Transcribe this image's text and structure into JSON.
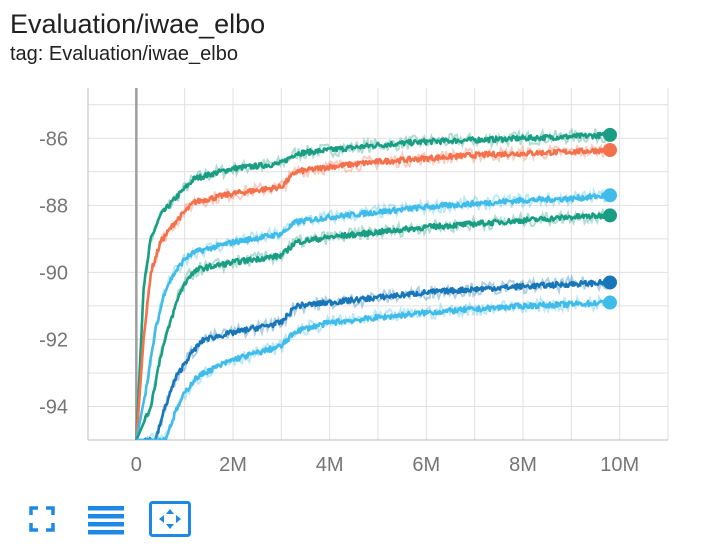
{
  "card": {
    "title": "Evaluation/iwae_elbo",
    "tag": "tag: Evaluation/iwae_elbo"
  },
  "toolbar": {
    "buttons": [
      {
        "icon": "fullscreen-icon"
      },
      {
        "icon": "data-table-icon"
      },
      {
        "icon": "fit-domain-icon"
      }
    ]
  },
  "colors": {
    "accent": "#1e88e5",
    "axis_zero": "#9e9e9e",
    "grid": "#e0e0e0",
    "tick_text": "#757575"
  },
  "chart_data": {
    "type": "line",
    "title": "",
    "xlabel": "",
    "ylabel": "",
    "xlim": [
      -1000000,
      11000000
    ],
    "ylim": [
      -95,
      -84.5
    ],
    "x_ticks": [
      0,
      2000000,
      4000000,
      6000000,
      8000000,
      10000000
    ],
    "x_tick_labels": [
      "0",
      "2M",
      "4M",
      "6M",
      "8M",
      "10M"
    ],
    "y_ticks": [
      -94,
      -92,
      -90,
      -88,
      -86
    ],
    "y_tick_labels": [
      "-94",
      "-92",
      "-90",
      "-88",
      "-86"
    ],
    "grid": true,
    "smoothing": "smoothed series drawn over a faint raw series",
    "series": [
      {
        "color": "#1a9e83",
        "x": [
          0,
          150000,
          300000,
          500000,
          800000,
          1000000,
          1200000,
          2000000,
          3000000,
          3300000,
          4000000,
          5000000,
          6000000,
          7000000,
          8000000,
          9000000,
          9800000
        ],
        "y": [
          -95,
          -90.5,
          -89.0,
          -88.3,
          -87.8,
          -87.5,
          -87.2,
          -86.9,
          -86.75,
          -86.45,
          -86.35,
          -86.2,
          -86.1,
          -86.05,
          -86.0,
          -85.95,
          -85.9
        ]
      },
      {
        "color": "#f4714b",
        "x": [
          0,
          150000,
          300000,
          500000,
          800000,
          1000000,
          1200000,
          2000000,
          3000000,
          3300000,
          4000000,
          5000000,
          6000000,
          7000000,
          8000000,
          9000000,
          9800000
        ],
        "y": [
          -95,
          -92.0,
          -90.0,
          -89.1,
          -88.5,
          -88.2,
          -87.9,
          -87.65,
          -87.45,
          -87.0,
          -86.85,
          -86.7,
          -86.6,
          -86.5,
          -86.45,
          -86.4,
          -86.35
        ]
      },
      {
        "color": "#3fbce9",
        "x": [
          0,
          200000,
          400000,
          600000,
          800000,
          1000000,
          1200000,
          2000000,
          3000000,
          3300000,
          4000000,
          5000000,
          6000000,
          7000000,
          8000000,
          9000000,
          9800000
        ],
        "y": [
          -95,
          -93.5,
          -91.7,
          -90.5,
          -90.0,
          -89.6,
          -89.4,
          -89.1,
          -88.85,
          -88.5,
          -88.35,
          -88.2,
          -88.05,
          -87.95,
          -87.85,
          -87.8,
          -87.7
        ]
      },
      {
        "color": "#1a9e83",
        "x": [
          0,
          300000,
          500000,
          700000,
          900000,
          1100000,
          1300000,
          2000000,
          3000000,
          3300000,
          4000000,
          5000000,
          6000000,
          7000000,
          8000000,
          9000000,
          9800000
        ],
        "y": [
          -95,
          -94.0,
          -92.5,
          -91.5,
          -90.6,
          -90.1,
          -89.9,
          -89.7,
          -89.5,
          -89.1,
          -88.95,
          -88.8,
          -88.65,
          -88.55,
          -88.45,
          -88.35,
          -88.3
        ]
      },
      {
        "color": "#1776b8",
        "x": [
          0,
          400000,
          600000,
          800000,
          1000000,
          1200000,
          1400000,
          2000000,
          3000000,
          3300000,
          4000000,
          5000000,
          6000000,
          7000000,
          8000000,
          9000000,
          9800000
        ],
        "y": [
          -95,
          -95.0,
          -94.0,
          -93.2,
          -92.7,
          -92.3,
          -92.0,
          -91.8,
          -91.5,
          -91.0,
          -90.9,
          -90.75,
          -90.6,
          -90.5,
          -90.42,
          -90.35,
          -90.3
        ]
      },
      {
        "color": "#3fbce9",
        "x": [
          0,
          600000,
          800000,
          1000000,
          1200000,
          1400000,
          2000000,
          3000000,
          3300000,
          4000000,
          5000000,
          6000000,
          7000000,
          8000000,
          9000000,
          9800000
        ],
        "y": [
          -95,
          -95.0,
          -94.2,
          -93.6,
          -93.2,
          -93.0,
          -92.6,
          -92.2,
          -91.75,
          -91.5,
          -91.35,
          -91.2,
          -91.1,
          -91.0,
          -90.95,
          -90.9
        ]
      }
    ]
  }
}
